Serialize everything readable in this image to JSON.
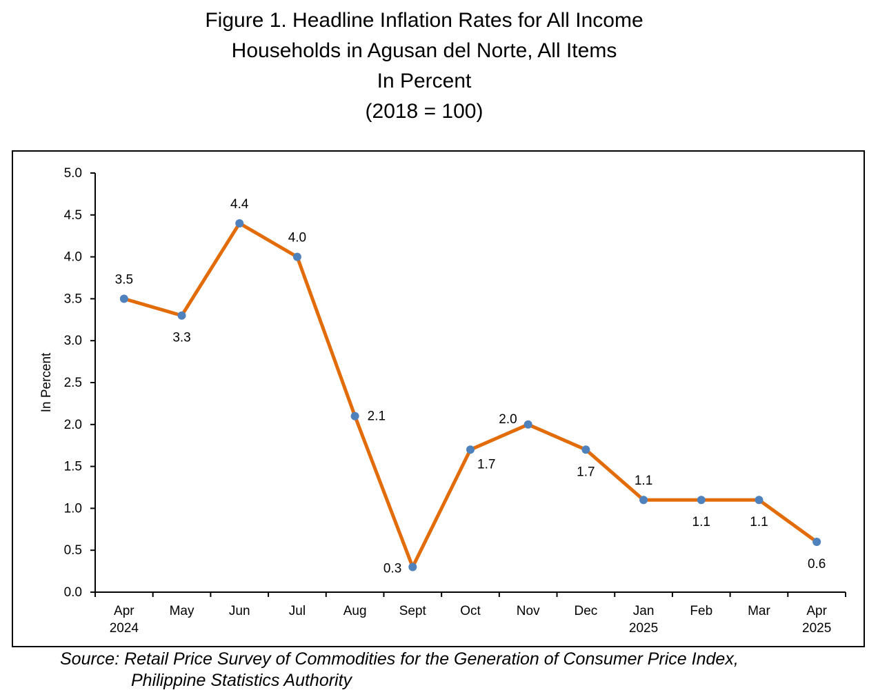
{
  "title": {
    "line1": "Figure 1. Headline Inflation Rates for All Income",
    "line2": "Households in Agusan del Norte, All Items",
    "line3": "In Percent",
    "line4": "(2018 = 100)"
  },
  "source": {
    "line1": "Source: Retail Price Survey of Commodities for the Generation of Consumer Price Index,",
    "line2": "Philippine Statistics Authority"
  },
  "chart_data": {
    "type": "line",
    "ylabel": "In  Percent",
    "ylim": [
      0,
      5
    ],
    "yticks": [
      "0.0",
      "0.5",
      "1.0",
      "1.5",
      "2.0",
      "2.5",
      "3.0",
      "3.5",
      "4.0",
      "4.5",
      "5.0"
    ],
    "categories": [
      [
        "Apr",
        "2024"
      ],
      [
        "May",
        ""
      ],
      [
        "Jun",
        ""
      ],
      [
        "Jul",
        ""
      ],
      [
        "Aug",
        ""
      ],
      [
        "Sept",
        ""
      ],
      [
        "Oct",
        ""
      ],
      [
        "Nov",
        ""
      ],
      [
        "Dec",
        ""
      ],
      [
        "Jan",
        "2025"
      ],
      [
        "Feb",
        ""
      ],
      [
        "Mar",
        ""
      ],
      [
        "Apr",
        "2025"
      ]
    ],
    "values": [
      3.5,
      3.3,
      4.4,
      4.0,
      2.1,
      0.3,
      1.7,
      2.0,
      1.7,
      1.1,
      1.1,
      1.1,
      0.6
    ],
    "data_labels": [
      "3.5",
      "3.3",
      "4.4",
      "4.0",
      "2.1",
      "0.3",
      "1.7",
      "2.0",
      "1.7",
      "1.1",
      "1.1",
      "1.1",
      "0.6"
    ],
    "label_positions": [
      "above",
      "below",
      "above",
      "above",
      "right",
      "left",
      "below-right",
      "above-left",
      "below",
      "above",
      "below",
      "below",
      "below"
    ],
    "colors": {
      "line": "#E36C0A",
      "marker": "#4F81BD"
    },
    "grid": false,
    "legend": "none"
  }
}
